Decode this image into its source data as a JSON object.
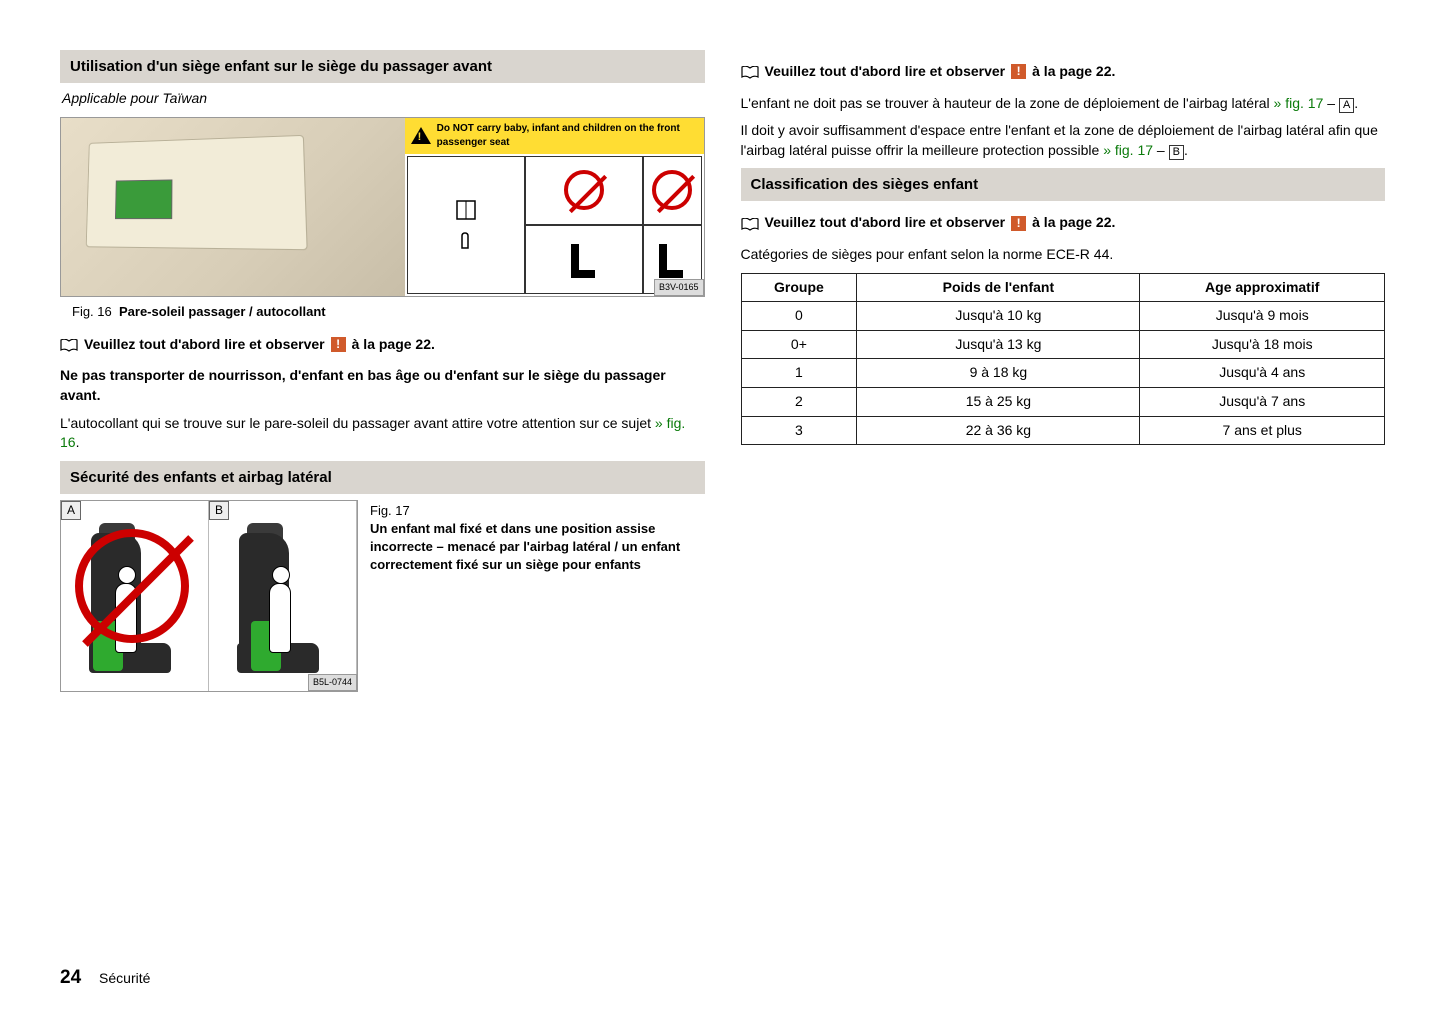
{
  "left": {
    "section1_title": "Utilisation d'un siège enfant sur le siège du passager avant",
    "applicable": "Applicable pour Taïwan",
    "fig16_code": "B3V-0165",
    "fig16_num": "Fig. 16",
    "fig16_title": "Pare-soleil passager / autocollant",
    "warning_sticker": "Do NOT carry baby, infant and children on the front passenger seat",
    "read_first_pre": "Veuillez tout d'abord lire et observer",
    "read_first_post": "à la page 22.",
    "bold_line": "Ne pas transporter de nourrisson, d'enfant en bas âge ou d'enfant sur le siège du passager avant.",
    "para2_a": "L'autocollant qui se trouve sur le pare-soleil du passager avant attire votre attention sur ce sujet ",
    "para2_link": "» fig. 16",
    "section2_title": "Sécurité des enfants et airbag latéral",
    "fig17_num": "Fig. 17",
    "fig17_title": "Un enfant mal fixé et dans une position assise incorrecte – menacé par l'airbag latéral / un enfant correctement fixé sur un siège pour enfants",
    "fig17_code": "B5L-0744"
  },
  "right": {
    "read_first_pre": "Veuillez tout d'abord lire et observer",
    "read_first_post": "à la page 22.",
    "para1_a": "L'enfant ne doit pas se trouver à hauteur de la zone de déploiement de l'airbag latéral ",
    "para1_link": "» fig. 17",
    "para1_dash": " – ",
    "para1_box": "A",
    "para2_a": "Il doit y avoir suffisamment d'espace entre l'enfant et la zone de déploiement de l'airbag latéral afin que l'airbag latéral puisse offrir la meilleure protection possible ",
    "para2_link": "» fig. 17",
    "para2_dash": " – ",
    "para2_box": "B",
    "section3_title": "Classification des sièges enfant",
    "para3": "Catégories de sièges pour enfant selon la norme ECE-R 44.",
    "table": {
      "columns": [
        "Groupe",
        "Poids de l'enfant",
        "Age approximatif"
      ],
      "rows": [
        [
          "0",
          "Jusqu'à 10 kg",
          "Jusqu'à 9 mois"
        ],
        [
          "0+",
          "Jusqu'à 13 kg",
          "Jusqu'à 18 mois"
        ],
        [
          "1",
          "9 à 18 kg",
          "Jusqu'à 4 ans"
        ],
        [
          "2",
          "15 à 25 kg",
          "Jusqu'à 7 ans"
        ],
        [
          "3",
          "22 à 36 kg",
          "7 ans et plus"
        ]
      ],
      "col_widths": [
        "18%",
        "44%",
        "38%"
      ]
    }
  },
  "footer": {
    "page": "24",
    "chapter": "Sécurité"
  },
  "colors": {
    "header_bg": "#d9d5cf",
    "green_link": "#0a7a0a",
    "warn_orange": "#d05a2b",
    "prohibit_red": "#c00",
    "accent_green": "#2faa2f",
    "warn_yellow": "#ffdd33"
  }
}
